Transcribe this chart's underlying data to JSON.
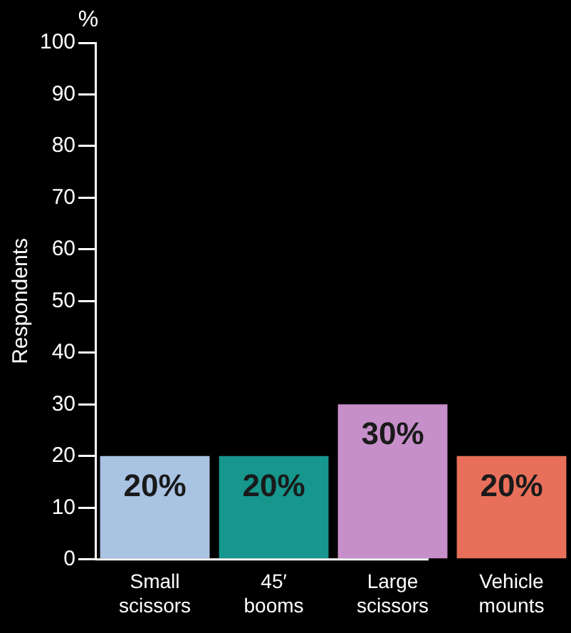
{
  "chart_data": {
    "type": "bar",
    "ylabel": "Respondents",
    "annotations": [
      "%"
    ],
    "categories": [
      "Small scissors",
      "45′ booms",
      "Large scissors",
      "Vehicle mounts"
    ],
    "values": [
      20,
      20,
      30,
      20
    ],
    "colors": [
      "#a9c3e3",
      "#16968c",
      "#c78fc9",
      "#e8705a"
    ],
    "value_labels": [
      "20%",
      "20%",
      "30%",
      "20%"
    ],
    "ylim": [
      0,
      100
    ],
    "yticks": [
      0,
      10,
      20,
      30,
      40,
      50,
      60,
      70,
      80,
      90,
      100
    ],
    "grid": false,
    "legend": false
  }
}
